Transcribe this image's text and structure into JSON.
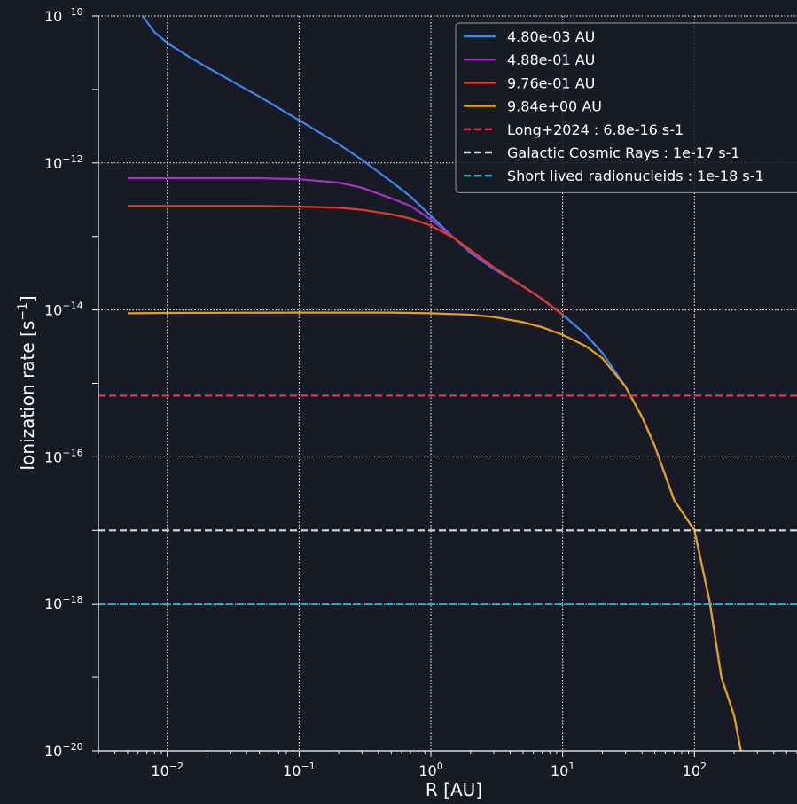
{
  "chart_data": {
    "type": "line",
    "xlabel": "R [AU]",
    "ylabel": "Ionization rate [s",
    "ylabel_sup": "−1",
    "ylabel_close": "]",
    "x_scale": "log",
    "y_scale": "log",
    "xlim": [
      0.003,
      600
    ],
    "ylim": [
      1e-20,
      1e-10
    ],
    "x_ticks": [
      {
        "value": 0.01,
        "base": "10",
        "exp": "−2"
      },
      {
        "value": 0.1,
        "base": "10",
        "exp": "−1"
      },
      {
        "value": 1,
        "base": "10",
        "exp": "0"
      },
      {
        "value": 10,
        "base": "10",
        "exp": "1"
      },
      {
        "value": 100,
        "base": "10",
        "exp": "2"
      }
    ],
    "y_ticks": [
      {
        "value": 1e-10,
        "base": "10",
        "exp": "−10"
      },
      {
        "value": 1e-12,
        "base": "10",
        "exp": "−12"
      },
      {
        "value": 1e-14,
        "base": "10",
        "exp": "−14"
      },
      {
        "value": 1e-16,
        "base": "10",
        "exp": "−16"
      },
      {
        "value": 1e-18,
        "base": "10",
        "exp": "−18"
      },
      {
        "value": 1e-20,
        "base": "10",
        "exp": "−20"
      }
    ],
    "grid": true,
    "legend_position": "top-right",
    "series": [
      {
        "name": "4.80e-03 AU",
        "color": "#3d86f0",
        "style": "solid",
        "x": [
          0.0065,
          0.008,
          0.01,
          0.015,
          0.02,
          0.05,
          0.1,
          0.2,
          0.3,
          0.5,
          0.7,
          1,
          1.5,
          2,
          3,
          5,
          7,
          10,
          15,
          20,
          30,
          40,
          50,
          70,
          100,
          130,
          160,
          200,
          225
        ],
        "y": [
          1e-10,
          6e-11,
          4.3e-11,
          2.7e-11,
          2e-11,
          8e-12,
          3.8e-12,
          1.8e-12,
          1.1e-12,
          5.6e-13,
          3.5e-13,
          1.9e-13,
          9.5e-14,
          6e-14,
          3.6e-14,
          2.1e-14,
          1.4e-14,
          8.6e-15,
          4.6e-15,
          2.6e-15,
          9e-16,
          3.5e-16,
          1.4e-16,
          2.6e-17,
          1e-17,
          1.1e-18,
          1e-19,
          3e-20,
          1e-20
        ]
      },
      {
        "name": "4.88e-01 AU",
        "color": "#a632c4",
        "style": "solid",
        "x": [
          0.005,
          0.01,
          0.05,
          0.1,
          0.2,
          0.3,
          0.5,
          0.7,
          1,
          1.5,
          2,
          3,
          5,
          7,
          10
        ],
        "y": [
          6.2e-13,
          6.2e-13,
          6.2e-13,
          6e-13,
          5.4e-13,
          4.6e-13,
          3.3e-13,
          2.6e-13,
          1.7e-13,
          9.5e-14,
          6.2e-14,
          3.7e-14,
          2.1e-14,
          1.4e-14,
          8.6e-15
        ]
      },
      {
        "name": "9.76e-01 AU",
        "color": "#e23c27",
        "style": "solid",
        "x": [
          0.005,
          0.01,
          0.05,
          0.1,
          0.2,
          0.3,
          0.5,
          0.7,
          1,
          1.5,
          2,
          3,
          5,
          7,
          10
        ],
        "y": [
          2.6e-13,
          2.6e-13,
          2.6e-13,
          2.55e-13,
          2.45e-13,
          2.3e-13,
          2e-13,
          1.75e-13,
          1.4e-13,
          9.5e-14,
          6.5e-14,
          3.8e-14,
          2.1e-14,
          1.4e-14,
          8.6e-15
        ]
      },
      {
        "name": "9.84e+00 AU",
        "color": "#e8a11c",
        "style": "solid",
        "x": [
          0.005,
          0.01,
          0.1,
          0.5,
          1,
          2,
          3,
          5,
          7,
          10,
          15,
          20,
          30,
          40,
          50,
          70,
          100,
          130,
          160,
          200,
          225
        ],
        "y": [
          9e-15,
          9.1e-15,
          9.2e-15,
          9.2e-15,
          9e-15,
          8.6e-15,
          8e-15,
          6.8e-15,
          5.8e-15,
          4.6e-15,
          3.2e-15,
          2.2e-15,
          9e-16,
          3.5e-16,
          1.4e-16,
          2.6e-17,
          1e-17,
          1.1e-18,
          1e-19,
          3e-20,
          1e-20
        ]
      },
      {
        "name": "Long+2024 : 6.8e-16 s-1",
        "color": "#e8324f",
        "style": "dashed",
        "constant": 6.8e-16
      },
      {
        "name": "Galactic Cosmic Rays : 1e-17 s-1",
        "color": "#d6d6e2",
        "style": "dashed",
        "constant": 1e-17
      },
      {
        "name": "Short lived radionucleids : 1e-18 s-1",
        "color": "#22b8d0",
        "style": "dashed",
        "constant": 1e-18
      }
    ]
  }
}
